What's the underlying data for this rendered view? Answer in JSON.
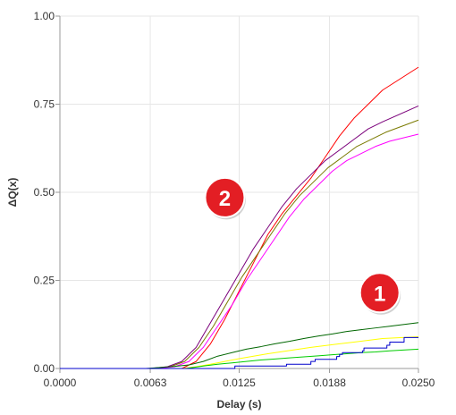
{
  "chart_data": {
    "type": "line",
    "title": "",
    "xlabel": "Delay (s)",
    "ylabel": "ΔQ(x)",
    "xlim": [
      0,
      0.025
    ],
    "ylim": [
      0,
      1
    ],
    "x_ticks": [
      0,
      0.0063,
      0.0125,
      0.0188,
      0.025
    ],
    "x_tick_labels": [
      "0.0000",
      "0.0063",
      "0.0125",
      "0.0188",
      "0.0250"
    ],
    "y_ticks": [
      0,
      0.25,
      0.5,
      0.75,
      1
    ],
    "y_tick_labels": [
      "0.00",
      "0.25",
      "0.50",
      "0.75",
      "1.00"
    ],
    "grid": true,
    "legend": "none",
    "series": [
      {
        "color": "#ff0000",
        "x": [
          0,
          0.0085,
          0.0095,
          0.0105,
          0.0115,
          0.0125,
          0.0135,
          0.0145,
          0.0155,
          0.0165,
          0.0175,
          0.0185,
          0.0195,
          0.0205,
          0.0215,
          0.0225,
          0.025
        ],
        "y": [
          0,
          0,
          0.02,
          0.07,
          0.14,
          0.22,
          0.3,
          0.38,
          0.44,
          0.49,
          0.54,
          0.6,
          0.66,
          0.71,
          0.75,
          0.79,
          0.855
        ]
      },
      {
        "color": "#7b007b",
        "x": [
          0,
          0.0063,
          0.0075,
          0.0085,
          0.0095,
          0.0105,
          0.0115,
          0.0125,
          0.0135,
          0.0145,
          0.0155,
          0.0165,
          0.0175,
          0.0185,
          0.0195,
          0.0205,
          0.0215,
          0.0225,
          0.025
        ],
        "y": [
          0,
          0,
          0.005,
          0.02,
          0.06,
          0.13,
          0.2,
          0.27,
          0.34,
          0.4,
          0.46,
          0.51,
          0.55,
          0.59,
          0.62,
          0.65,
          0.68,
          0.7,
          0.745
        ]
      },
      {
        "color": "#7a7a00",
        "x": [
          0,
          0.0065,
          0.0077,
          0.0087,
          0.0097,
          0.0107,
          0.0117,
          0.0127,
          0.0137,
          0.0147,
          0.0157,
          0.0167,
          0.0177,
          0.0187,
          0.0197,
          0.0207,
          0.0217,
          0.0227,
          0.025
        ],
        "y": [
          0,
          0,
          0.005,
          0.02,
          0.06,
          0.12,
          0.19,
          0.26,
          0.32,
          0.38,
          0.44,
          0.49,
          0.53,
          0.57,
          0.6,
          0.63,
          0.65,
          0.67,
          0.705
        ]
      },
      {
        "color": "#ff00ff",
        "x": [
          0,
          0.0068,
          0.008,
          0.009,
          0.01,
          0.011,
          0.012,
          0.013,
          0.014,
          0.015,
          0.016,
          0.017,
          0.018,
          0.019,
          0.02,
          0.021,
          0.022,
          0.023,
          0.025
        ],
        "y": [
          0,
          0,
          0.005,
          0.02,
          0.06,
          0.12,
          0.18,
          0.25,
          0.31,
          0.37,
          0.43,
          0.48,
          0.52,
          0.56,
          0.59,
          0.61,
          0.63,
          0.645,
          0.665
        ]
      },
      {
        "color": "#006600",
        "x": [
          0,
          0.006,
          0.007,
          0.008,
          0.009,
          0.01,
          0.011,
          0.012,
          0.013,
          0.014,
          0.015,
          0.016,
          0.017,
          0.018,
          0.019,
          0.02,
          0.021,
          0.022,
          0.023,
          0.024,
          0.025
        ],
        "y": [
          0,
          0,
          0.003,
          0.006,
          0.01,
          0.02,
          0.035,
          0.045,
          0.055,
          0.062,
          0.07,
          0.077,
          0.085,
          0.092,
          0.098,
          0.105,
          0.11,
          0.115,
          0.12,
          0.125,
          0.13
        ]
      },
      {
        "color": "#ffff00",
        "x": [
          0,
          0.0085,
          0.0095,
          0.0105,
          0.0115,
          0.0125,
          0.0135,
          0.0145,
          0.0155,
          0.0165,
          0.0175,
          0.0185,
          0.0195,
          0.0205,
          0.0215,
          0.0225,
          0.025
        ],
        "y": [
          0,
          0,
          0.005,
          0.012,
          0.02,
          0.028,
          0.035,
          0.042,
          0.048,
          0.054,
          0.06,
          0.065,
          0.07,
          0.075,
          0.08,
          0.085,
          0.09
        ]
      },
      {
        "color": "#00cc00",
        "x": [
          0,
          0.0088,
          0.01,
          0.011,
          0.012,
          0.013,
          0.014,
          0.015,
          0.016,
          0.017,
          0.018,
          0.019,
          0.02,
          0.021,
          0.022,
          0.023,
          0.025
        ],
        "y": [
          0,
          0,
          0.007,
          0.012,
          0.016,
          0.02,
          0.024,
          0.027,
          0.03,
          0.033,
          0.036,
          0.039,
          0.042,
          0.045,
          0.047,
          0.05,
          0.055
        ]
      },
      {
        "color": "#0000cc",
        "step": true,
        "x": [
          0,
          0.0122,
          0.0122,
          0.0158,
          0.0158,
          0.0175,
          0.0175,
          0.0178,
          0.0178,
          0.0193,
          0.0193,
          0.0195,
          0.0195,
          0.0197,
          0.0197,
          0.0211,
          0.0211,
          0.0212,
          0.0212,
          0.0228,
          0.0228,
          0.023,
          0.023,
          0.024,
          0.024,
          0.025
        ],
        "y": [
          0,
          0,
          0.007,
          0.007,
          0.012,
          0.012,
          0.02,
          0.02,
          0.026,
          0.026,
          0.034,
          0.034,
          0.04,
          0.04,
          0.045,
          0.045,
          0.05,
          0.05,
          0.058,
          0.058,
          0.066,
          0.066,
          0.075,
          0.075,
          0.088,
          0.088
        ]
      }
    ],
    "annotations": [
      {
        "text": "1",
        "x": 0.0223,
        "y": 0.215,
        "color": "#e31e24"
      },
      {
        "text": "2",
        "x": 0.0115,
        "y": 0.485,
        "color": "#e31e24"
      }
    ]
  }
}
